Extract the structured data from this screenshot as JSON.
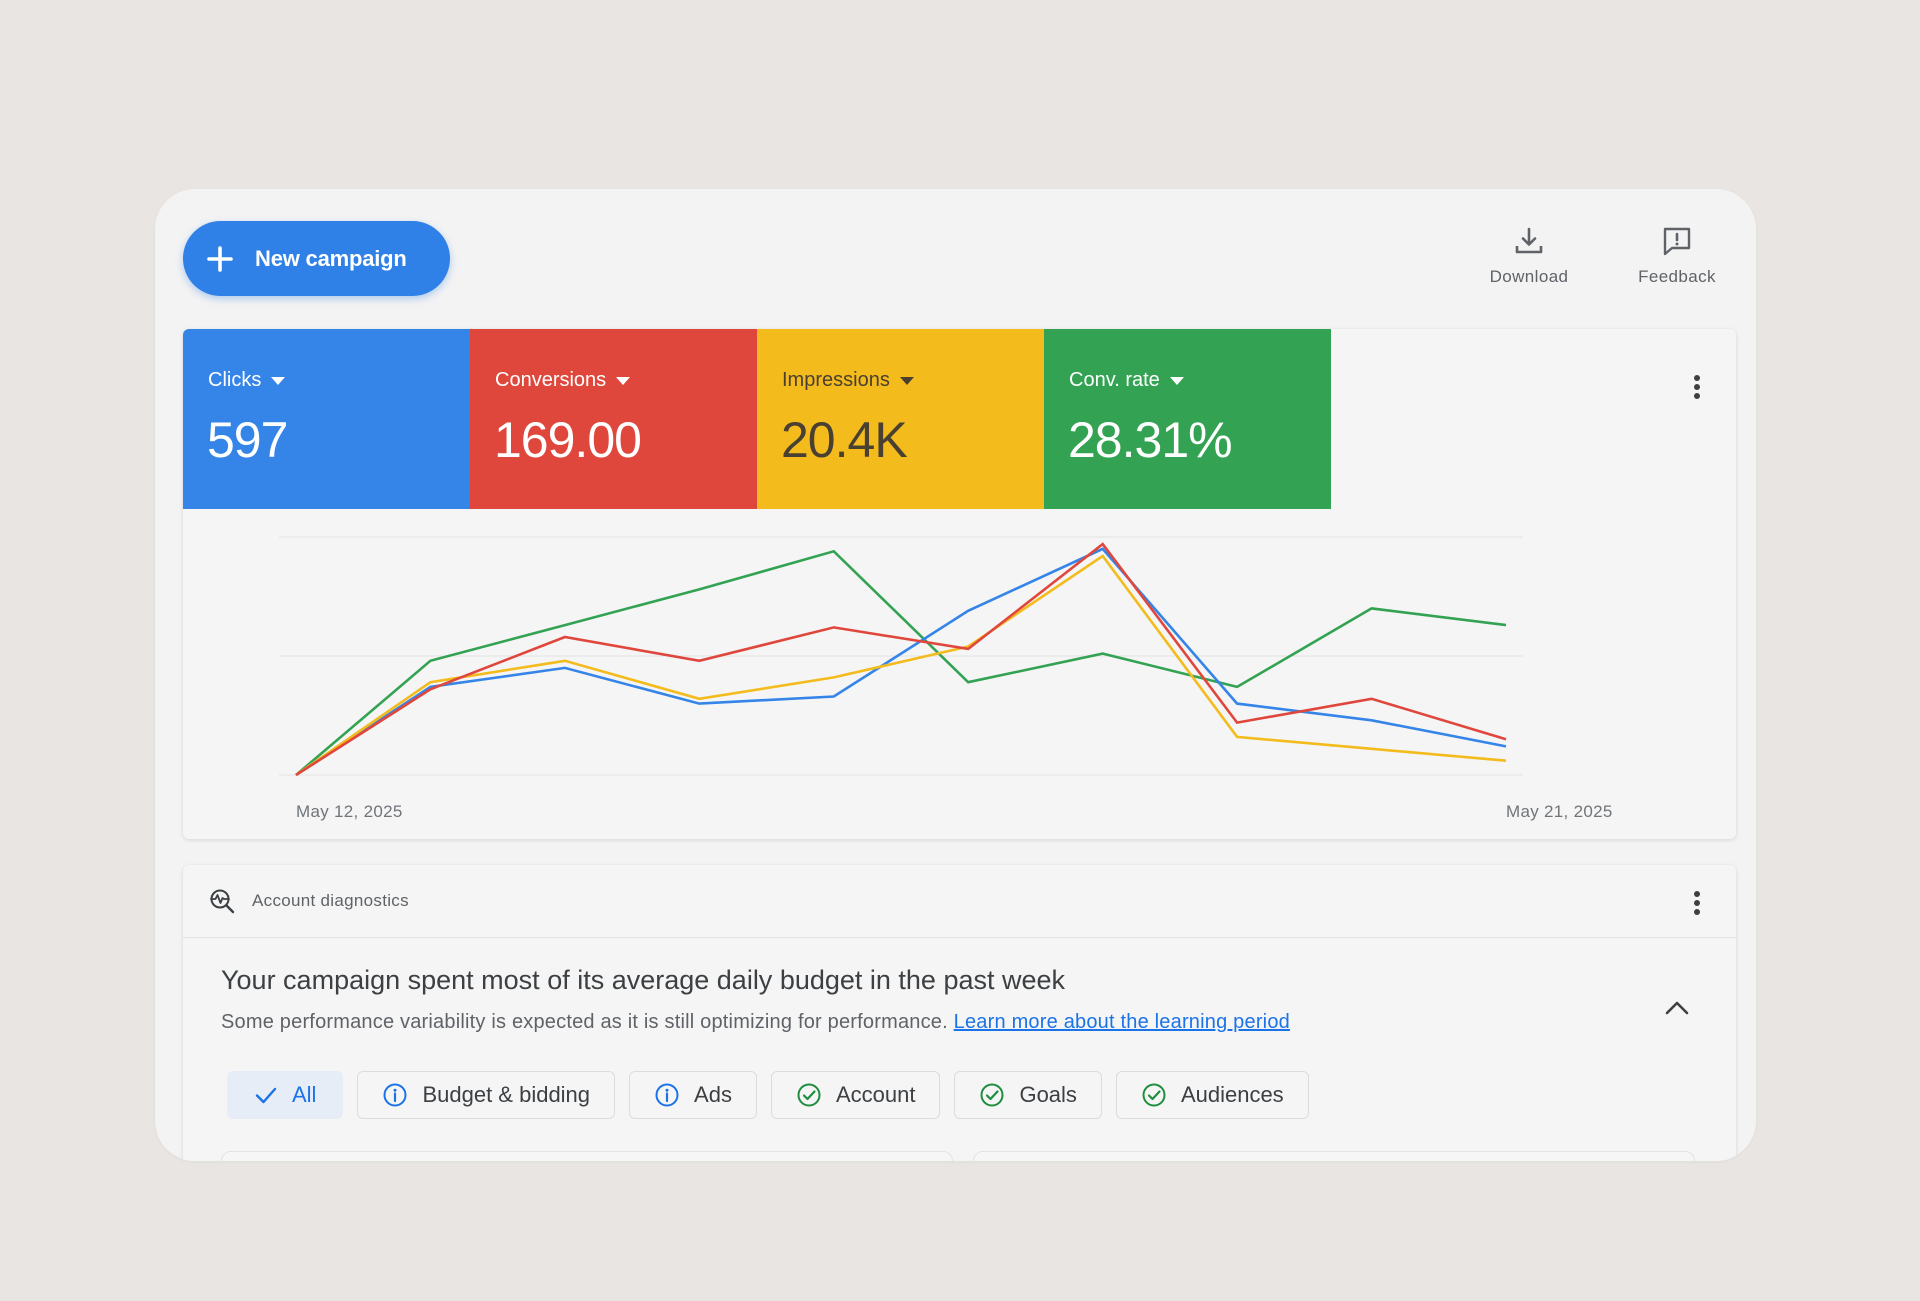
{
  "toolbar": {
    "new_campaign_label": "New campaign",
    "download_label": "Download",
    "feedback_label": "Feedback",
    "accent_color": "#2f80e7"
  },
  "scorecards": [
    {
      "label": "Clicks",
      "value": "597",
      "color": "#3585e8"
    },
    {
      "label": "Conversions",
      "value": "169.00",
      "color": "#e0473c"
    },
    {
      "label": "Impressions",
      "value": "20.4K",
      "color": "#f3bb1c"
    },
    {
      "label": "Conv. rate",
      "value": "28.31%",
      "color": "#33a353"
    }
  ],
  "chart_data": {
    "type": "line",
    "x_start_label": "May 12, 2025",
    "x_end_label": "May 21, 2025",
    "x": [
      "May 12, 2025",
      "May 13, 2025",
      "May 14, 2025",
      "May 15, 2025",
      "May 16, 2025",
      "May 17, 2025",
      "May 18, 2025",
      "May 19, 2025",
      "May 20, 2025",
      "May 21, 2025"
    ],
    "grid": true,
    "ylim": [
      0,
      100
    ],
    "series": [
      {
        "key": "conv_rate",
        "color": "#33a353",
        "values": [
          0,
          48,
          63,
          78,
          94,
          39,
          51,
          37,
          70,
          63
        ]
      },
      {
        "key": "clicks",
        "color": "#3585e8",
        "values": [
          0,
          37,
          45,
          30,
          33,
          69,
          95,
          30,
          23,
          12
        ]
      },
      {
        "key": "impressions",
        "color": "#f3bb1c",
        "values": [
          0,
          39,
          48,
          32,
          41,
          54,
          92,
          16,
          11,
          6
        ]
      },
      {
        "key": "conversions",
        "color": "#e0473c",
        "values": [
          0,
          36,
          58,
          48,
          62,
          53,
          97,
          22,
          32,
          15
        ]
      }
    ]
  },
  "diagnostics": {
    "title": "Account diagnostics",
    "headline": "Your campaign spent most of its average daily budget in the past week",
    "subtext": "Some performance variability is expected as it is still optimizing for performance.",
    "link_text": "Learn more about the learning period",
    "filters": [
      {
        "label": "All",
        "icon": "check-icon",
        "selected": true
      },
      {
        "label": "Budget & bidding",
        "icon": "info-icon",
        "selected": false
      },
      {
        "label": "Ads",
        "icon": "info-icon",
        "selected": false
      },
      {
        "label": "Account",
        "icon": "check-circle-icon",
        "selected": false
      },
      {
        "label": "Goals",
        "icon": "check-circle-icon",
        "selected": false
      },
      {
        "label": "Audiences",
        "icon": "check-circle-icon",
        "selected": false
      }
    ]
  }
}
